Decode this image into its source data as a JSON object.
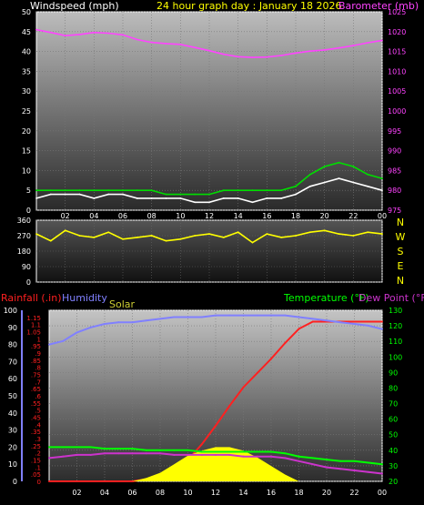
{
  "colors": {
    "wind": "#ffffff",
    "gust": "#00dd00",
    "baro": "#ff44ff",
    "dir": "#ffff00",
    "rain": "#ff2020",
    "humidity": "#8080ff",
    "solar": "#ffff00",
    "temp": "#00ff00",
    "dew": "#cc33cc",
    "tick_text": "#ffffff",
    "title_text": "#ffff00"
  },
  "header": {
    "wind_label": "Windspeed (mph)",
    "title": "24 hour graph day : January 18 2026",
    "baro_label": "Barometer (mb)"
  },
  "lower_header": {
    "rain_label": "Rainfall (.in)",
    "humidity_label": "Humidity",
    "solar_label": "Solar",
    "temp_label": "Temperature (°F)",
    "dew_label": "Dew Point (°F)"
  },
  "compass": [
    "N",
    "W",
    "S",
    "E",
    "N"
  ],
  "chart_data": [
    {
      "type": "line",
      "title": "24 hour graph day : January 18 2026",
      "x_ticks": [
        "02",
        "04",
        "06",
        "08",
        "10",
        "12",
        "14",
        "16",
        "18",
        "20",
        "22",
        "00"
      ],
      "y_left_label": "Windspeed (mph)",
      "y_left_ticks": [
        0,
        5,
        10,
        15,
        20,
        25,
        30,
        35,
        40,
        45,
        50
      ],
      "y_left_range": [
        0,
        50
      ],
      "y_right_label": "Barometer (mb)",
      "y_right_ticks": [
        975,
        980,
        985,
        990,
        995,
        1000,
        1005,
        1010,
        1015,
        1020,
        1025
      ],
      "y_right_range": [
        975,
        1025
      ],
      "series": [
        {
          "name": "Windspeed (mph)",
          "axis": "left",
          "x": [
            0,
            1,
            2,
            3,
            4,
            5,
            6,
            7,
            8,
            9,
            10,
            11,
            12,
            13,
            14,
            15,
            16,
            17,
            18,
            19,
            20,
            21,
            22,
            23,
            24
          ],
          "values": [
            3,
            4,
            4,
            4,
            3,
            4,
            4,
            3,
            3,
            3,
            3,
            2,
            2,
            3,
            3,
            2,
            3,
            3,
            4,
            6,
            7,
            8,
            7,
            6,
            5
          ]
        },
        {
          "name": "Gust",
          "axis": "left",
          "x": [
            0,
            1,
            2,
            3,
            4,
            5,
            6,
            7,
            8,
            9,
            10,
            11,
            12,
            13,
            14,
            15,
            16,
            17,
            18,
            19,
            20,
            21,
            22,
            23,
            24
          ],
          "values": [
            5,
            5,
            5,
            5,
            5,
            5,
            5,
            5,
            5,
            4,
            4,
            4,
            4,
            5,
            5,
            5,
            5,
            5,
            6,
            9,
            11,
            12,
            11,
            9,
            8
          ]
        },
        {
          "name": "Barometer (mb)",
          "axis": "right",
          "x": [
            0,
            1,
            2,
            3,
            4,
            5,
            6,
            7,
            8,
            9,
            10,
            11,
            12,
            13,
            14,
            15,
            16,
            17,
            18,
            19,
            20,
            21,
            22,
            23,
            24
          ],
          "values": [
            1020.5,
            1019.8,
            1019.0,
            1019.3,
            1019.8,
            1019.6,
            1019.2,
            1018.0,
            1017.3,
            1017.0,
            1016.8,
            1016.0,
            1015.2,
            1014.3,
            1013.7,
            1013.5,
            1013.6,
            1014.0,
            1014.6,
            1015.1,
            1015.4,
            1015.9,
            1016.5,
            1017.2,
            1017.8
          ]
        }
      ]
    },
    {
      "type": "line",
      "title": "",
      "x_ticks": [],
      "y_ticks": [
        0,
        90,
        180,
        270,
        360
      ],
      "y_range": [
        0,
        360
      ],
      "series": [
        {
          "name": "Wind direction",
          "x": [
            0,
            1,
            2,
            3,
            4,
            5,
            6,
            7,
            8,
            9,
            10,
            11,
            12,
            13,
            14,
            15,
            16,
            17,
            18,
            19,
            20,
            21,
            22,
            23,
            24
          ],
          "values": [
            280,
            240,
            300,
            270,
            260,
            290,
            250,
            260,
            270,
            240,
            250,
            270,
            280,
            260,
            290,
            230,
            280,
            260,
            270,
            290,
            300,
            280,
            270,
            290,
            280
          ]
        }
      ]
    },
    {
      "type": "line",
      "title": "",
      "x_ticks": [
        "02",
        "04",
        "06",
        "08",
        "10",
        "12",
        "14",
        "16",
        "18",
        "20",
        "22",
        "00"
      ],
      "y_humidity_ticks": [
        0,
        10,
        20,
        30,
        40,
        50,
        60,
        70,
        80,
        90,
        100
      ],
      "y_rain_ticks": [
        0,
        0.05,
        0.1,
        0.15,
        0.2,
        0.25,
        0.3,
        0.35,
        0.4,
        0.45,
        0.5,
        0.55,
        0.6,
        0.65,
        0.7,
        0.75,
        0.8,
        0.85,
        0.9,
        0.95,
        1,
        1.05,
        1.1,
        1.15
      ],
      "y_rain_range": [
        0,
        1.2
      ],
      "y_temp_ticks": [
        20,
        30,
        40,
        50,
        60,
        70,
        80,
        90,
        100,
        110,
        120,
        130
      ],
      "y_temp_range": [
        20,
        130
      ],
      "series": [
        {
          "name": "Rainfall (.in)",
          "x": [
            0,
            2,
            4,
            6,
            8,
            9,
            10,
            11,
            12,
            13,
            14,
            15,
            16,
            17,
            18,
            19,
            20,
            21,
            22,
            23,
            24
          ],
          "values": [
            0,
            0,
            0,
            0,
            0.03,
            0.07,
            0.15,
            0.26,
            0.39,
            0.53,
            0.66,
            0.76,
            0.86,
            0.97,
            1.07,
            1.12,
            1.12,
            1.12,
            1.12,
            1.12,
            1.12
          ]
        },
        {
          "name": "Humidity",
          "x": [
            0,
            1,
            2,
            3,
            4,
            5,
            6,
            7,
            8,
            9,
            10,
            11,
            12,
            13,
            14,
            15,
            16,
            17,
            18,
            19,
            20,
            21,
            22,
            23,
            24
          ],
          "values": [
            80,
            82,
            87,
            90,
            92,
            93,
            93,
            94,
            95,
            96,
            96,
            96,
            97,
            97,
            97,
            97,
            97,
            97,
            96,
            95,
            94,
            93,
            92,
            91,
            89
          ]
        },
        {
          "name": "Solar",
          "x": [
            0,
            6,
            7,
            8,
            9,
            10,
            11,
            12,
            13,
            14,
            15,
            16,
            17,
            18,
            24
          ],
          "values": [
            0,
            0,
            2,
            5,
            10,
            15,
            18,
            20,
            20,
            18,
            14,
            9,
            4,
            0,
            0
          ]
        },
        {
          "name": "Temperature (°F)",
          "x": [
            0,
            1,
            2,
            3,
            4,
            5,
            6,
            7,
            8,
            9,
            10,
            11,
            12,
            13,
            14,
            15,
            16,
            17,
            18,
            19,
            20,
            21,
            22,
            23,
            24
          ],
          "values": [
            42,
            42,
            42,
            42,
            41,
            41,
            41,
            40,
            40,
            40,
            40,
            39,
            39,
            39,
            39,
            39,
            39,
            38,
            36,
            35,
            34,
            33,
            33,
            32,
            31
          ]
        },
        {
          "name": "Dew Point (°F)",
          "x": [
            0,
            1,
            2,
            3,
            4,
            5,
            6,
            7,
            8,
            9,
            10,
            11,
            12,
            13,
            14,
            15,
            16,
            17,
            18,
            19,
            20,
            21,
            22,
            23,
            24
          ],
          "values": [
            35,
            36,
            37,
            37,
            38,
            38,
            38,
            38,
            38,
            37,
            37,
            37,
            37,
            37,
            36,
            36,
            36,
            35,
            33,
            31,
            29,
            28,
            27,
            26,
            25
          ]
        }
      ]
    }
  ]
}
